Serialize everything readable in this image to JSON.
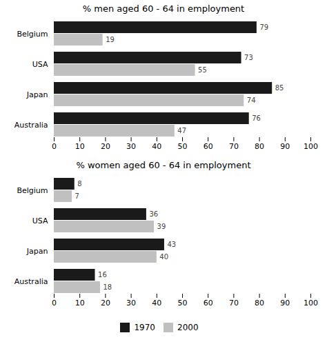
{
  "chart_data": [
    {
      "type": "bar",
      "orientation": "horizontal",
      "title": "% men aged 60 - 64 in employment",
      "categories": [
        "Belgium",
        "USA",
        "Japan",
        "Australia"
      ],
      "series": [
        {
          "name": "1970",
          "color": "#1a1a1a",
          "values": [
            79,
            73,
            85,
            76
          ]
        },
        {
          "name": "2000",
          "color": "#c0c0c0",
          "values": [
            19,
            55,
            74,
            47
          ]
        }
      ],
      "xlim": [
        0,
        100
      ],
      "xticks": [
        0,
        10,
        20,
        30,
        40,
        50,
        60,
        70,
        80,
        90,
        100
      ],
      "grid": false,
      "data_labels": true
    },
    {
      "type": "bar",
      "orientation": "horizontal",
      "title": "% women aged 60 - 64 in employment",
      "categories": [
        "Belgium",
        "USA",
        "Japan",
        "Australia"
      ],
      "series": [
        {
          "name": "1970",
          "color": "#1a1a1a",
          "values": [
            8,
            36,
            43,
            16
          ]
        },
        {
          "name": "2000",
          "color": "#c0c0c0",
          "values": [
            7,
            39,
            40,
            18
          ]
        }
      ],
      "xlim": [
        0,
        100
      ],
      "xticks": [
        0,
        10,
        20,
        30,
        40,
        50,
        60,
        70,
        80,
        90,
        100
      ],
      "grid": false,
      "data_labels": true,
      "legend": "bottom"
    }
  ]
}
